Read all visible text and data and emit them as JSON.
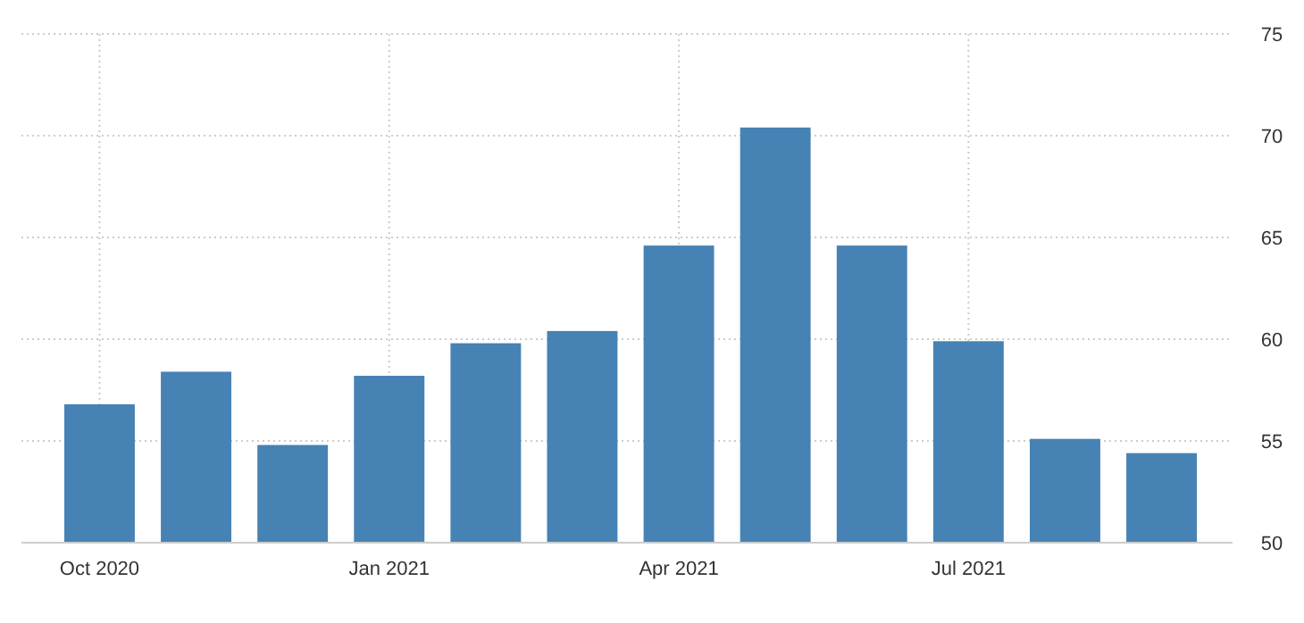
{
  "chart_data": {
    "type": "bar",
    "categories": [
      "Oct 2020",
      null,
      null,
      "Jan 2021",
      null,
      null,
      "Apr 2021",
      null,
      null,
      "Jul 2021",
      null,
      null
    ],
    "values": [
      56.8,
      58.4,
      54.8,
      58.2,
      59.8,
      60.4,
      64.6,
      70.4,
      64.6,
      59.9,
      55.1,
      54.4
    ],
    "color": "#4682b4",
    "ylim": [
      50,
      75
    ],
    "yticks": [
      50,
      55,
      60,
      65,
      70,
      75
    ],
    "grid": true
  }
}
